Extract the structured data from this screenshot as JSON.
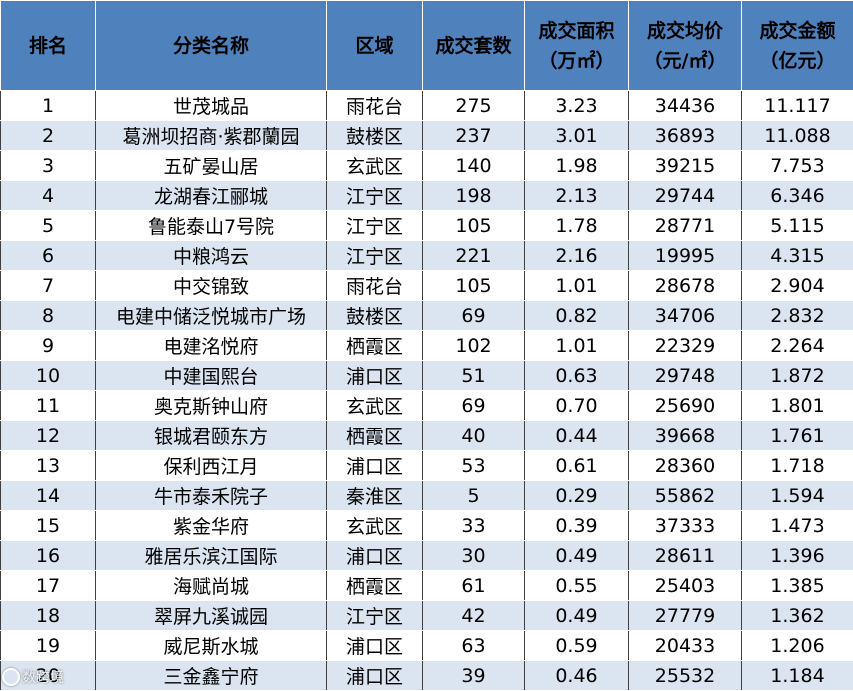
{
  "headers": {
    "rank": "排名",
    "name": "分类名称",
    "district": "区域",
    "units": "成交套数",
    "area_line1": "成交面积",
    "area_line2": "（万㎡）",
    "price_line1": "成交均价",
    "price_line2": "（元/㎡）",
    "amount_line1": "成交金额",
    "amount_line2": "（亿元）"
  },
  "rows": [
    {
      "rank": "1",
      "name": "世茂城品",
      "district": "雨花台",
      "units": "275",
      "area": "3.23",
      "price": "34436",
      "amount": "11.117"
    },
    {
      "rank": "2",
      "name": "葛洲坝招商·紫郡蘭园",
      "district": "鼓楼区",
      "units": "237",
      "area": "3.01",
      "price": "36893",
      "amount": "11.088"
    },
    {
      "rank": "3",
      "name": "五矿晏山居",
      "district": "玄武区",
      "units": "140",
      "area": "1.98",
      "price": "39215",
      "amount": "7.753"
    },
    {
      "rank": "4",
      "name": "龙湖春江郦城",
      "district": "江宁区",
      "units": "198",
      "area": "2.13",
      "price": "29744",
      "amount": "6.346"
    },
    {
      "rank": "5",
      "name": "鲁能泰山7号院",
      "district": "江宁区",
      "units": "105",
      "area": "1.78",
      "price": "28771",
      "amount": "5.115"
    },
    {
      "rank": "6",
      "name": "中粮鸿云",
      "district": "江宁区",
      "units": "221",
      "area": "2.16",
      "price": "19995",
      "amount": "4.315"
    },
    {
      "rank": "7",
      "name": "中交锦致",
      "district": "雨花台",
      "units": "105",
      "area": "1.01",
      "price": "28678",
      "amount": "2.904"
    },
    {
      "rank": "8",
      "name": "电建中储泛悦城市广场",
      "district": "鼓楼区",
      "units": "69",
      "area": "0.82",
      "price": "34706",
      "amount": "2.832"
    },
    {
      "rank": "9",
      "name": "电建洺悦府",
      "district": "栖霞区",
      "units": "102",
      "area": "1.01",
      "price": "22329",
      "amount": "2.264"
    },
    {
      "rank": "10",
      "name": "中建国熙台",
      "district": "浦口区",
      "units": "51",
      "area": "0.63",
      "price": "29748",
      "amount": "1.872"
    },
    {
      "rank": "11",
      "name": "奥克斯钟山府",
      "district": "玄武区",
      "units": "69",
      "area": "0.70",
      "price": "25690",
      "amount": "1.801"
    },
    {
      "rank": "12",
      "name": "银城君颐东方",
      "district": "栖霞区",
      "units": "40",
      "area": "0.44",
      "price": "39668",
      "amount": "1.761"
    },
    {
      "rank": "13",
      "name": "保利西江月",
      "district": "浦口区",
      "units": "53",
      "area": "0.61",
      "price": "28360",
      "amount": "1.718"
    },
    {
      "rank": "14",
      "name": "牛市泰禾院子",
      "district": "秦淮区",
      "units": "5",
      "area": "0.29",
      "price": "55862",
      "amount": "1.594"
    },
    {
      "rank": "15",
      "name": "紫金华府",
      "district": "玄武区",
      "units": "33",
      "area": "0.39",
      "price": "37333",
      "amount": "1.473"
    },
    {
      "rank": "16",
      "name": "雅居乐滨江国际",
      "district": "浦口区",
      "units": "30",
      "area": "0.49",
      "price": "28611",
      "amount": "1.396"
    },
    {
      "rank": "17",
      "name": "海赋尚城",
      "district": "栖霞区",
      "units": "61",
      "area": "0.55",
      "price": "25403",
      "amount": "1.385"
    },
    {
      "rank": "18",
      "name": "翠屏九溪诚园",
      "district": "江宁区",
      "units": "42",
      "area": "0.49",
      "price": "27779",
      "amount": "1.362"
    },
    {
      "rank": "19",
      "name": "威尼斯水城",
      "district": "浦口区",
      "units": "63",
      "area": "0.59",
      "price": "20433",
      "amount": "1.206"
    },
    {
      "rank": "20",
      "name": "三金鑫宁府",
      "district": "浦口区",
      "units": "39",
      "area": "0.46",
      "price": "25532",
      "amount": "1.184"
    }
  ],
  "watermark": {
    "text": "数跨境"
  },
  "colors": {
    "header_bg": "#4f81bd",
    "row_alt": "#dbe5f1",
    "row": "#ffffff"
  }
}
